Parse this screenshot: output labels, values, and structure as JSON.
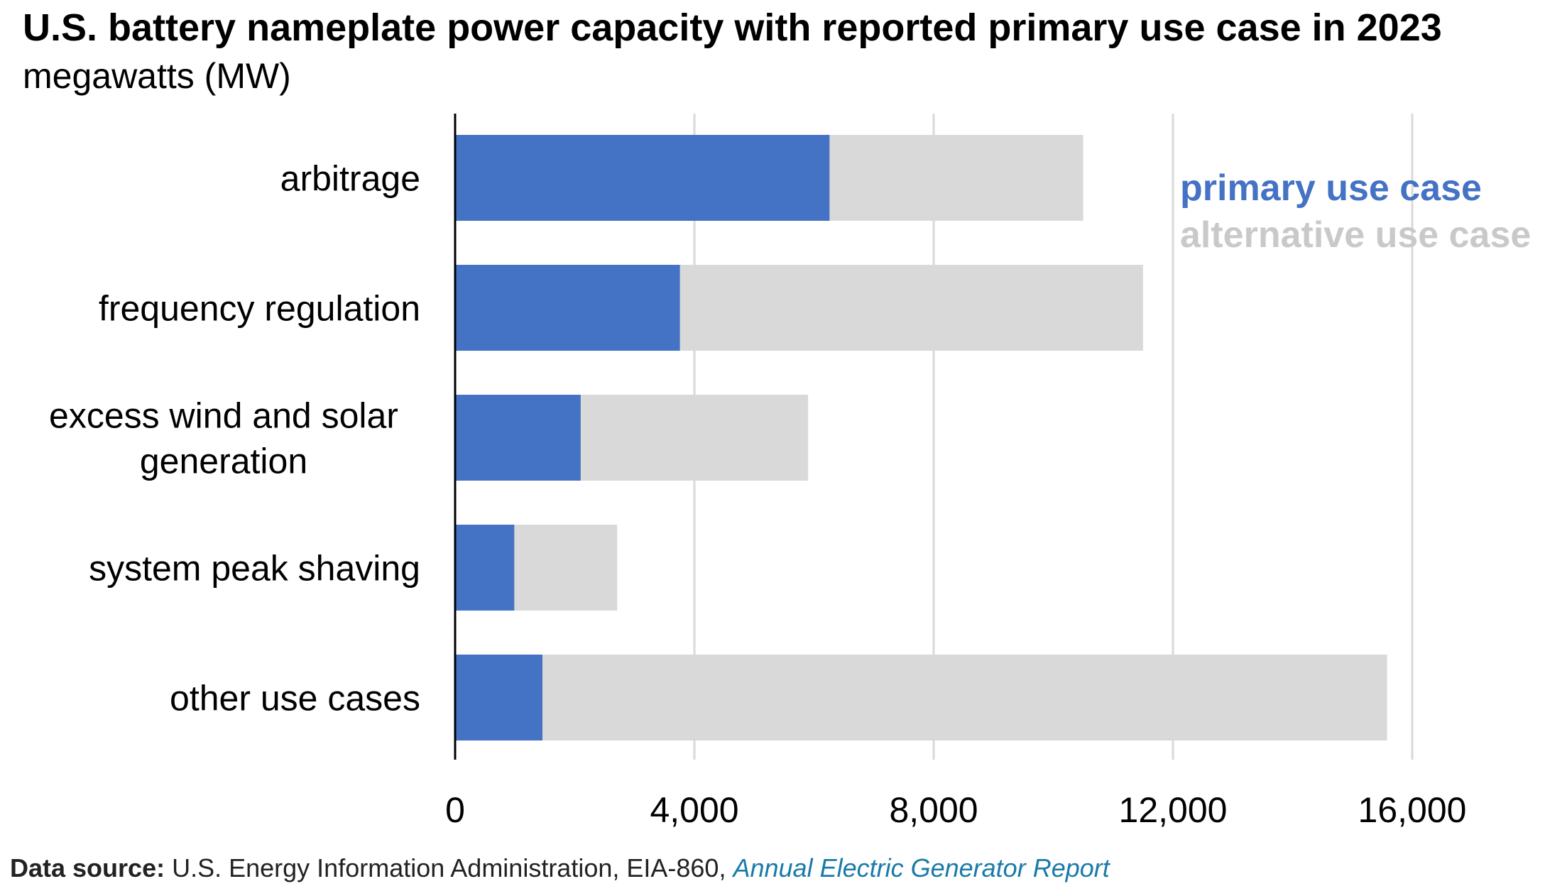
{
  "header": {
    "title": "U.S. battery nameplate power capacity with reported primary use case in 2023",
    "subtitle": "megawatts (MW)"
  },
  "source": {
    "label": "Data source:",
    "text": "U.S. Energy Information Administration, EIA-860,",
    "link_text": "Annual Electric Generator Report"
  },
  "chart_data": {
    "type": "bar",
    "orientation": "horizontal",
    "stacked": true,
    "title": "U.S. battery nameplate power capacity with reported primary use case in 2023",
    "subtitle": "megawatts (MW)",
    "categories": [
      [
        "arbitrage"
      ],
      [
        "frequency regulation"
      ],
      [
        "excess wind and solar",
        "generation"
      ],
      [
        "system peak shaving"
      ],
      [
        "other use cases"
      ]
    ],
    "series": [
      {
        "name": "primary use case",
        "color": "#4472c4",
        "values": [
          6260,
          3760,
          2100,
          990,
          1460
        ]
      },
      {
        "name": "alternative use case",
        "color": "#d9d9d9",
        "values": [
          4240,
          7740,
          3800,
          1720,
          14120
        ]
      }
    ],
    "xlim": [
      0,
      16000
    ],
    "xticks": [
      0,
      4000,
      8000,
      12000,
      16000
    ],
    "xtick_labels": [
      "0",
      "4,000",
      "8,000",
      "12,000",
      "16,000"
    ],
    "grid": "vertical",
    "legend": "top-right"
  }
}
